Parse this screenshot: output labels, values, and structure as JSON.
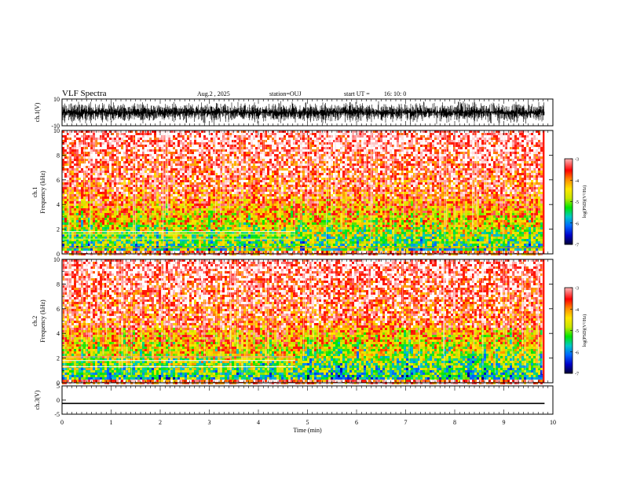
{
  "header": {
    "title": "VLF Spectra",
    "date": "Aug.2  , 2025",
    "station": "station=OUJ",
    "start_label": "start  UT  =",
    "start_time": "16: 10: 0"
  },
  "chart_data": [
    {
      "type": "line",
      "panel": "ch1-waveform",
      "ylabel": "ch.1(V)",
      "ylim": [
        -10,
        10
      ],
      "yticks": [
        "10",
        "-10"
      ],
      "xlim": [
        0,
        10
      ],
      "note": "dense waveform roughly between -8 and +8 V over 0 to 9.83 min"
    },
    {
      "type": "heatmap",
      "panel": "ch1-spectrogram",
      "ylabel_top": "ch.1",
      "ylabel": "Frequency  (kHz)",
      "ylim": [
        0,
        10
      ],
      "yticks": [
        "0",
        "2",
        "4",
        "6",
        "8",
        "10"
      ],
      "xlim": [
        0,
        10
      ],
      "data_extent_min": 9.83,
      "colorbar": {
        "label": "log(PSD)(V²/Hz)",
        "range": [
          -7,
          -3
        ],
        "ticks": [
          "-3",
          "-4",
          "-5",
          "-6",
          "-7"
        ]
      }
    },
    {
      "type": "heatmap",
      "panel": "ch2-spectrogram",
      "ylabel_top": "ch.2",
      "ylabel": "Frequency  (kHz)",
      "ylim": [
        0,
        10
      ],
      "yticks": [
        "0",
        "2",
        "4",
        "6",
        "8",
        "10"
      ],
      "xlim": [
        0,
        10
      ],
      "data_extent_min": 9.83,
      "colorbar": {
        "label": "log(PSD)(V²/Hz)",
        "range": [
          -7,
          -3
        ],
        "ticks": [
          "-3",
          "-4",
          "-5",
          "-6",
          "-7"
        ]
      }
    },
    {
      "type": "line",
      "panel": "ch3-trace",
      "ylabel": "ch.3(V)",
      "ylim": [
        -5,
        5
      ],
      "yticks": [
        "5",
        "0",
        "-5"
      ],
      "x": [
        0,
        9.83
      ],
      "y": [
        -1.2,
        -1.2
      ],
      "xlabel": "Time  (min)",
      "xticks": [
        "0",
        "1",
        "2",
        "3",
        "4",
        "5",
        "6",
        "7",
        "8",
        "9",
        "10"
      ],
      "xlim": [
        0,
        10
      ]
    }
  ],
  "colors": {
    "ink": "#000000",
    "colormap": [
      "#000030",
      "#0000c8",
      "#0064ff",
      "#00c8c8",
      "#00e600",
      "#c8e600",
      "#ffe600",
      "#ff8c00",
      "#ff0000",
      "#ff9696",
      "#ffffff"
    ]
  }
}
